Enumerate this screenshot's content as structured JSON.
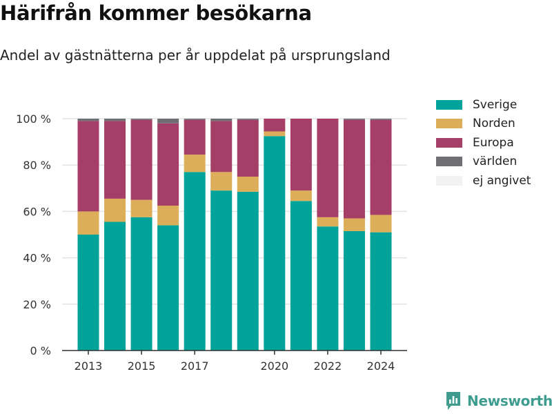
{
  "title": "Härifrån kommer besökarna",
  "subtitle": "Andel av gästnätterna per år uppdelat på ursprungsland",
  "brand": "Newsworthy",
  "colors": {
    "Sverige": "#00a399",
    "Norden": "#ddae59",
    "Europa": "#a63f67",
    "världen": "#6f6f73",
    "ej angivet": "#f2f2f2",
    "brand": "#3e9c8f"
  },
  "chart_data": {
    "type": "bar",
    "stacked": true,
    "categories": [
      "2013",
      "2014",
      "2015",
      "2016",
      "2017",
      "2018",
      "2019",
      "2020",
      "2021",
      "2022",
      "2023",
      "2024"
    ],
    "x_tick_labels": [
      "2013",
      "2015",
      "2017",
      "2020",
      "2022",
      "2024"
    ],
    "y_tick_labels": [
      "0 %",
      "20 %",
      "40 %",
      "60 %",
      "80 %",
      "100 %"
    ],
    "y_ticks": [
      0,
      20,
      40,
      60,
      80,
      100
    ],
    "ylim": [
      0,
      100
    ],
    "grid": true,
    "legend_position": "right",
    "series": [
      {
        "name": "Sverige",
        "values": [
          50,
          55.5,
          57.5,
          54,
          77,
          69,
          68.5,
          92.5,
          64.5,
          53.5,
          51.5,
          51
        ]
      },
      {
        "name": "Norden",
        "values": [
          10,
          10,
          7.5,
          8.5,
          7.5,
          8,
          6.5,
          2,
          4.5,
          4,
          5.5,
          7.5
        ]
      },
      {
        "name": "Europa",
        "values": [
          39,
          33.5,
          34.5,
          35.5,
          15,
          22,
          24.5,
          5.5,
          31,
          42.5,
          42.5,
          41
        ]
      },
      {
        "name": "världen",
        "values": [
          1,
          1,
          0.5,
          2,
          0.5,
          1,
          0.5,
          0,
          0,
          0,
          0.5,
          0.5
        ]
      },
      {
        "name": "ej angivet",
        "values": [
          0,
          0,
          0,
          0,
          0,
          0,
          0,
          0,
          0,
          0,
          0,
          0
        ]
      }
    ]
  }
}
